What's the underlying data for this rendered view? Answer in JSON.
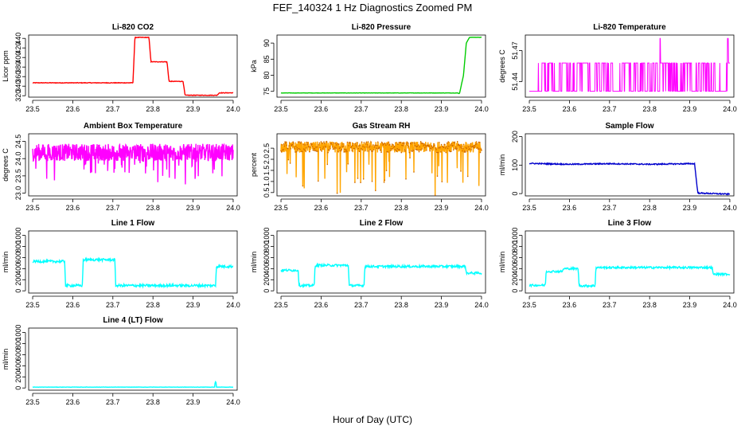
{
  "figure": {
    "title": "FEF_140324  1 Hz Diagnostics Zoomed PM",
    "xlabel": "Hour of Day (UTC)"
  },
  "chart_data": [
    {
      "type": "line",
      "title": "Li-820 CO2",
      "ylabel": "Licor ppm",
      "color": "#ff0000",
      "xlim": [
        23.49,
        24.01
      ],
      "ylim": [
        317,
        447
      ],
      "xticks": [
        "23.5",
        "23.6",
        "23.7",
        "23.8",
        "23.9",
        "24.0"
      ],
      "yticks": [
        "320",
        "340",
        "360",
        "380",
        "400",
        "420",
        "440"
      ],
      "x": [
        23.5,
        23.75,
        23.755,
        23.79,
        23.795,
        23.835,
        23.84,
        23.875,
        23.88,
        23.96,
        23.965,
        24.0
      ],
      "y": [
        347,
        347,
        442,
        442,
        391,
        391,
        350,
        350,
        321,
        321,
        326,
        326
      ],
      "noise": 0.6
    },
    {
      "type": "line",
      "title": "Li-820 Pressure",
      "ylabel": "kPa",
      "color": "#00cc00",
      "xlim": [
        23.49,
        24.01
      ],
      "ylim": [
        73.2,
        92.5
      ],
      "xticks": [
        "23.5",
        "23.6",
        "23.7",
        "23.8",
        "23.9",
        "24.0"
      ],
      "yticks": [
        "75",
        "80",
        "85",
        "90"
      ],
      "x": [
        23.5,
        23.94,
        23.945,
        23.955,
        23.962,
        23.97,
        24.0
      ],
      "y": [
        74.5,
        74.5,
        74.3,
        80,
        90,
        91.8,
        91.8
      ],
      "noise": 0.04
    },
    {
      "type": "spikes",
      "title": "Li-820 Temperature",
      "ylabel": "degrees C",
      "color": "#ff00ff",
      "xlim": [
        23.49,
        24.01
      ],
      "ylim": [
        51.425,
        51.485
      ],
      "xticks": [
        "23.5",
        "23.6",
        "23.7",
        "23.8",
        "23.9",
        "24.0"
      ],
      "yticks": [
        "51.44",
        "51.47"
      ],
      "baseline": 51.4307,
      "level": 51.458,
      "high": 51.4817,
      "spike_count": 130,
      "spike_start": 23.52,
      "tall_spikes": [
        23.826,
        23.995
      ]
    },
    {
      "type": "noise",
      "title": "Ambient Box Temperature",
      "ylabel": "degrees C",
      "color": "#ff00ff",
      "xlim": [
        23.49,
        24.01
      ],
      "ylim": [
        22.92,
        24.72
      ],
      "xticks": [
        "23.5",
        "23.6",
        "23.7",
        "23.8",
        "23.9",
        "24.0"
      ],
      "yticks": [
        "23.0",
        "23.5",
        "24.0",
        "24.5"
      ],
      "x": [
        23.5,
        24.0
      ],
      "center": 24.18,
      "amplitude": 0.25,
      "dips": 50,
      "dip_depth": 0.8
    },
    {
      "type": "noise",
      "title": "Gas Stream RH",
      "ylabel": "percent",
      "color": "#ffa500",
      "point_color": "#cc6600",
      "xlim": [
        23.49,
        24.01
      ],
      "ylim": [
        0.35,
        3.15
      ],
      "xticks": [
        "23.5",
        "23.6",
        "23.7",
        "23.8",
        "23.9",
        "24.0"
      ],
      "yticks": [
        "0.5",
        "1.0",
        "1.5",
        "2.0",
        "2.5"
      ],
      "x": [
        23.5,
        24.0
      ],
      "center": 2.55,
      "amplitude": 0.25,
      "dips": 40,
      "dip_depth": 2.0
    },
    {
      "type": "line",
      "title": "Sample Flow",
      "ylabel": "ml/min",
      "color": "#0000cc",
      "xlim": [
        23.49,
        24.01
      ],
      "ylim": [
        -8,
        210
      ],
      "xticks": [
        "23.5",
        "23.6",
        "23.7",
        "23.8",
        "23.9",
        "24.0"
      ],
      "yticks": [
        "0",
        "100",
        "200"
      ],
      "x": [
        23.5,
        23.6,
        23.7,
        23.8,
        23.9,
        23.912,
        23.92,
        24.0
      ],
      "y": [
        106,
        103,
        105,
        103,
        105,
        105,
        2,
        -2
      ],
      "noise": 2.0
    },
    {
      "type": "line",
      "title": "Line 1 Flow",
      "ylabel": "ml/min",
      "color": "#00ffff",
      "xlim": [
        23.49,
        24.01
      ],
      "ylim": [
        -40,
        1080
      ],
      "xticks": [
        "23.5",
        "23.6",
        "23.7",
        "23.8",
        "23.9",
        "24.0"
      ],
      "yticks": [
        "0",
        "200",
        "400",
        "600",
        "800",
        "1000"
      ],
      "x": [
        23.5,
        23.58,
        23.582,
        23.624,
        23.626,
        23.705,
        23.707,
        23.956,
        23.958,
        24.0
      ],
      "y": [
        530,
        530,
        95,
        95,
        560,
        560,
        95,
        95,
        440,
        440
      ],
      "noise": 22
    },
    {
      "type": "line",
      "title": "Line 2 Flow",
      "ylabel": "ml/min",
      "color": "#00ffff",
      "xlim": [
        23.49,
        24.01
      ],
      "ylim": [
        -40,
        1080
      ],
      "xticks": [
        "23.5",
        "23.6",
        "23.7",
        "23.8",
        "23.9",
        "24.0"
      ],
      "yticks": [
        "0",
        "200",
        "400",
        "600",
        "800",
        "1000"
      ],
      "x": [
        23.5,
        23.543,
        23.545,
        23.583,
        23.585,
        23.668,
        23.67,
        23.707,
        23.709,
        23.96,
        23.962,
        24.0
      ],
      "y": [
        370,
        370,
        95,
        95,
        460,
        460,
        95,
        95,
        440,
        440,
        320,
        320
      ],
      "noise": 20
    },
    {
      "type": "line",
      "title": "Line 3 Flow",
      "ylabel": "ml/min",
      "color": "#00ffff",
      "xlim": [
        23.49,
        24.01
      ],
      "ylim": [
        -40,
        1080
      ],
      "xticks": [
        "23.5",
        "23.6",
        "23.7",
        "23.8",
        "23.9",
        "24.0"
      ],
      "yticks": [
        "0",
        "200",
        "400",
        "600",
        "800",
        "1000"
      ],
      "x": [
        23.5,
        23.54,
        23.542,
        23.583,
        23.585,
        23.622,
        23.624,
        23.664,
        23.666,
        23.956,
        23.958,
        24.0
      ],
      "y": [
        100,
        100,
        350,
        350,
        400,
        400,
        90,
        90,
        420,
        420,
        300,
        300
      ],
      "noise": 18
    },
    {
      "type": "line",
      "title": "Line 4 (LT) Flow",
      "ylabel": "ml/min",
      "color": "#00ffff",
      "xlim": [
        23.49,
        24.01
      ],
      "ylim": [
        -40,
        1080
      ],
      "xticks": [
        "23.5",
        "23.6",
        "23.7",
        "23.8",
        "23.9",
        "24.0"
      ],
      "yticks": [
        "0",
        "200",
        "400",
        "600",
        "800",
        "1000"
      ],
      "x": [
        23.5,
        23.954,
        23.955,
        23.957,
        23.958,
        24.0
      ],
      "y": [
        15,
        15,
        110,
        110,
        15,
        15
      ],
      "noise": 2
    }
  ]
}
